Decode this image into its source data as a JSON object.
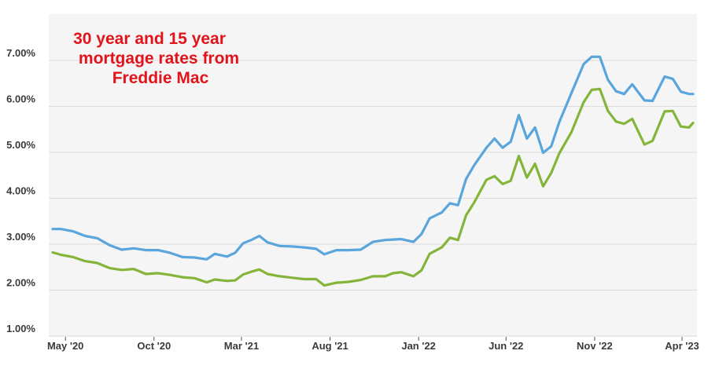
{
  "chart_data": {
    "type": "line",
    "title_lines": [
      "30 year and 15 year",
      "mortgage rates from",
      "Freddie Mac"
    ],
    "xlabel": "",
    "ylabel": "",
    "ylim": [
      1.0,
      7.5
    ],
    "y_ticks": [
      1.0,
      2.0,
      3.0,
      4.0,
      5.0,
      6.0,
      7.0
    ],
    "y_tick_labels": [
      "1.00%",
      "2.00%",
      "3.00%",
      "4.00%",
      "5.00%",
      "6.00%",
      "7.00%"
    ],
    "x_range": [
      "2020-04-09",
      "2023-04-20"
    ],
    "x_ticks": [
      "2020-05-01",
      "2020-10-01",
      "2021-03-01",
      "2021-08-01",
      "2022-01-01",
      "2022-06-01",
      "2022-11-01",
      "2023-04-01"
    ],
    "x_tick_labels": [
      "May '20",
      "Oct '20",
      "Mar '21",
      "Aug '21",
      "Jan '22",
      "Jun '22",
      "Nov '22",
      "Apr '23"
    ],
    "grid": true,
    "legend": "none",
    "colors": {
      "series_30yr": "#5aa5dc",
      "series_15yr": "#85b43a",
      "title": "#e1141b",
      "background": "#f5f5f5"
    },
    "series": [
      {
        "points": [
          [
            "2020-04-09",
            3.33
          ],
          [
            "2020-04-23",
            3.33
          ],
          [
            "2020-05-14",
            3.28
          ],
          [
            "2020-06-04",
            3.18
          ],
          [
            "2020-06-25",
            3.13
          ],
          [
            "2020-07-16",
            2.98
          ],
          [
            "2020-08-06",
            2.88
          ],
          [
            "2020-08-27",
            2.91
          ],
          [
            "2020-09-17",
            2.87
          ],
          [
            "2020-10-08",
            2.87
          ],
          [
            "2020-10-29",
            2.81
          ],
          [
            "2020-11-19",
            2.72
          ],
          [
            "2020-12-10",
            2.71
          ],
          [
            "2020-12-31",
            2.67
          ],
          [
            "2021-01-14",
            2.79
          ],
          [
            "2021-02-04",
            2.73
          ],
          [
            "2021-02-18",
            2.81
          ],
          [
            "2021-03-04",
            3.02
          ],
          [
            "2021-03-18",
            3.09
          ],
          [
            "2021-04-01",
            3.18
          ],
          [
            "2021-04-15",
            3.04
          ],
          [
            "2021-05-06",
            2.96
          ],
          [
            "2021-05-27",
            2.95
          ],
          [
            "2021-06-17",
            2.93
          ],
          [
            "2021-07-08",
            2.9
          ],
          [
            "2021-07-22",
            2.78
          ],
          [
            "2021-08-12",
            2.87
          ],
          [
            "2021-09-02",
            2.87
          ],
          [
            "2021-09-23",
            2.88
          ],
          [
            "2021-10-14",
            3.05
          ],
          [
            "2021-11-04",
            3.09
          ],
          [
            "2021-11-18",
            3.1
          ],
          [
            "2021-12-02",
            3.11
          ],
          [
            "2021-12-23",
            3.05
          ],
          [
            "2022-01-06",
            3.22
          ],
          [
            "2022-01-20",
            3.56
          ],
          [
            "2022-02-10",
            3.69
          ],
          [
            "2022-02-24",
            3.89
          ],
          [
            "2022-03-10",
            3.85
          ],
          [
            "2022-03-24",
            4.42
          ],
          [
            "2022-04-07",
            4.72
          ],
          [
            "2022-04-28",
            5.1
          ],
          [
            "2022-05-12",
            5.3
          ],
          [
            "2022-05-26",
            5.1
          ],
          [
            "2022-06-09",
            5.23
          ],
          [
            "2022-06-23",
            5.81
          ],
          [
            "2022-07-07",
            5.3
          ],
          [
            "2022-07-21",
            5.54
          ],
          [
            "2022-08-04",
            4.99
          ],
          [
            "2022-08-18",
            5.13
          ],
          [
            "2022-09-01",
            5.66
          ],
          [
            "2022-09-22",
            6.29
          ],
          [
            "2022-10-13",
            6.92
          ],
          [
            "2022-10-27",
            7.08
          ],
          [
            "2022-11-10",
            7.08
          ],
          [
            "2022-11-24",
            6.58
          ],
          [
            "2022-12-08",
            6.33
          ],
          [
            "2022-12-22",
            6.27
          ],
          [
            "2023-01-05",
            6.48
          ],
          [
            "2023-01-26",
            6.13
          ],
          [
            "2023-02-09",
            6.12
          ],
          [
            "2023-03-02",
            6.65
          ],
          [
            "2023-03-16",
            6.6
          ],
          [
            "2023-03-30",
            6.32
          ],
          [
            "2023-04-13",
            6.27
          ],
          [
            "2023-04-20",
            6.27
          ]
        ]
      },
      {
        "points": [
          [
            "2020-04-09",
            2.82
          ],
          [
            "2020-04-23",
            2.77
          ],
          [
            "2020-05-14",
            2.72
          ],
          [
            "2020-06-04",
            2.63
          ],
          [
            "2020-06-25",
            2.59
          ],
          [
            "2020-07-16",
            2.48
          ],
          [
            "2020-08-06",
            2.44
          ],
          [
            "2020-08-27",
            2.46
          ],
          [
            "2020-09-17",
            2.35
          ],
          [
            "2020-10-08",
            2.37
          ],
          [
            "2020-10-29",
            2.33
          ],
          [
            "2020-11-19",
            2.28
          ],
          [
            "2020-12-10",
            2.26
          ],
          [
            "2020-12-31",
            2.17
          ],
          [
            "2021-01-14",
            2.23
          ],
          [
            "2021-02-04",
            2.2
          ],
          [
            "2021-02-18",
            2.21
          ],
          [
            "2021-03-04",
            2.34
          ],
          [
            "2021-03-18",
            2.4
          ],
          [
            "2021-04-01",
            2.45
          ],
          [
            "2021-04-15",
            2.35
          ],
          [
            "2021-05-06",
            2.3
          ],
          [
            "2021-05-27",
            2.27
          ],
          [
            "2021-06-17",
            2.24
          ],
          [
            "2021-07-08",
            2.24
          ],
          [
            "2021-07-22",
            2.1
          ],
          [
            "2021-08-12",
            2.16
          ],
          [
            "2021-09-02",
            2.18
          ],
          [
            "2021-09-23",
            2.22
          ],
          [
            "2021-10-14",
            2.3
          ],
          [
            "2021-11-04",
            2.3
          ],
          [
            "2021-11-18",
            2.37
          ],
          [
            "2021-12-02",
            2.39
          ],
          [
            "2021-12-23",
            2.3
          ],
          [
            "2022-01-06",
            2.43
          ],
          [
            "2022-01-20",
            2.79
          ],
          [
            "2022-02-10",
            2.93
          ],
          [
            "2022-02-24",
            3.14
          ],
          [
            "2022-03-10",
            3.09
          ],
          [
            "2022-03-24",
            3.63
          ],
          [
            "2022-04-07",
            3.91
          ],
          [
            "2022-04-28",
            4.4
          ],
          [
            "2022-05-12",
            4.48
          ],
          [
            "2022-05-26",
            4.31
          ],
          [
            "2022-06-09",
            4.38
          ],
          [
            "2022-06-23",
            4.92
          ],
          [
            "2022-07-07",
            4.45
          ],
          [
            "2022-07-21",
            4.75
          ],
          [
            "2022-08-04",
            4.26
          ],
          [
            "2022-08-18",
            4.55
          ],
          [
            "2022-09-01",
            4.98
          ],
          [
            "2022-09-22",
            5.44
          ],
          [
            "2022-10-13",
            6.09
          ],
          [
            "2022-10-27",
            6.36
          ],
          [
            "2022-11-10",
            6.38
          ],
          [
            "2022-11-24",
            5.9
          ],
          [
            "2022-12-08",
            5.67
          ],
          [
            "2022-12-22",
            5.62
          ],
          [
            "2023-01-05",
            5.73
          ],
          [
            "2023-01-26",
            5.17
          ],
          [
            "2023-02-09",
            5.25
          ],
          [
            "2023-03-02",
            5.89
          ],
          [
            "2023-03-16",
            5.9
          ],
          [
            "2023-03-30",
            5.56
          ],
          [
            "2023-04-13",
            5.54
          ],
          [
            "2023-04-20",
            5.64
          ]
        ]
      }
    ]
  }
}
